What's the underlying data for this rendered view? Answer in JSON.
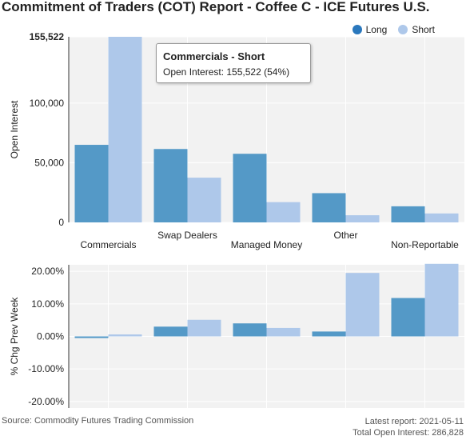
{
  "title": "Commitment of Traders (COT) Report - Coffee C - ICE Futures U.S.",
  "legend": {
    "long_label": "Long",
    "short_label": "Short"
  },
  "colors": {
    "long": "#5499c7",
    "short": "#aec8ea",
    "long_legend": "#2a78bd",
    "panel_bg": "#f2f2f2",
    "grid": "#ffffff"
  },
  "tooltip": {
    "title": "Commercials - Short",
    "body": "Open Interest: 155,522 (54%)"
  },
  "footer": {
    "source": "Source: Commodity Futures Trading Commission",
    "latest_report": "Latest report: 2021-05-11",
    "total_oi": "Total Open Interest: 286,828"
  },
  "chart_data": [
    {
      "type": "bar",
      "ylabel": "Open Interest",
      "categories": [
        "Commercials",
        "Swap Dealers",
        "Managed Money",
        "Other",
        "Non-Reportable"
      ],
      "series": [
        {
          "name": "Long",
          "values": [
            65000,
            61500,
            57500,
            24500,
            13500
          ]
        },
        {
          "name": "Short",
          "values": [
            155522,
            37500,
            17000,
            6000,
            7500
          ]
        }
      ],
      "ylim": [
        0,
        155522
      ],
      "yticks": [
        0,
        50000,
        100000,
        155522
      ],
      "ytick_labels": [
        "0",
        "50,000",
        "100,000",
        "155,522"
      ]
    },
    {
      "type": "bar",
      "ylabel": "% Chg Prev Week",
      "categories": [
        "Commercials",
        "Swap Dealers",
        "Managed Money",
        "Other",
        "Non-Reportable"
      ],
      "series": [
        {
          "name": "Long",
          "values": [
            -0.5,
            3.0,
            4.0,
            1.5,
            11.8
          ]
        },
        {
          "name": "Short",
          "values": [
            0.6,
            5.1,
            2.6,
            19.5,
            22.3
          ]
        }
      ],
      "ylim": [
        -22,
        22
      ],
      "yticks": [
        -20,
        -10,
        0,
        10,
        20
      ],
      "ytick_labels": [
        "-20.00%",
        "-10.00%",
        "0.00%",
        "10.00%",
        "20.00%"
      ]
    }
  ]
}
